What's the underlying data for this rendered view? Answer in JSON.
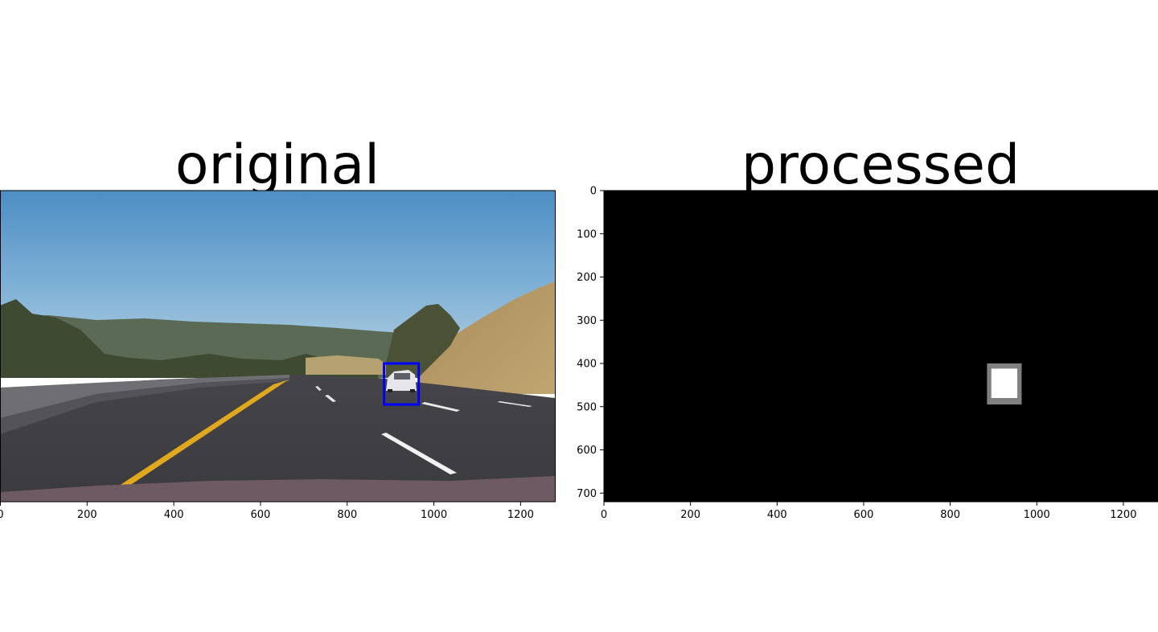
{
  "chart_data": [
    {
      "type": "image",
      "title": "original",
      "xlabel": "",
      "ylabel": "",
      "xlim": [
        0,
        1280
      ],
      "ylim": [
        720,
        0
      ],
      "x_ticks": [
        0,
        200,
        400,
        600,
        800,
        1000,
        1200
      ],
      "y_ticks": [],
      "annotations": [
        {
          "kind": "bounding-box",
          "color": "#0000ff",
          "x0": 885,
          "y0": 400,
          "x1": 965,
          "y1": 495
        }
      ]
    },
    {
      "type": "heatmap",
      "title": "processed",
      "xlabel": "",
      "ylabel": "",
      "xlim": [
        0,
        1280
      ],
      "ylim": [
        720,
        0
      ],
      "x_ticks": [
        0,
        200,
        400,
        600,
        800,
        1000,
        1200
      ],
      "y_ticks": [
        0,
        100,
        200,
        300,
        400,
        500,
        600,
        700
      ],
      "colormap": "gray",
      "background": "#000000",
      "regions": [
        {
          "x0": 885,
          "y0": 400,
          "x1": 965,
          "y1": 495,
          "level": 0.5
        },
        {
          "x0": 895,
          "y0": 412,
          "x1": 955,
          "y1": 480,
          "level": 1.0
        }
      ]
    }
  ]
}
